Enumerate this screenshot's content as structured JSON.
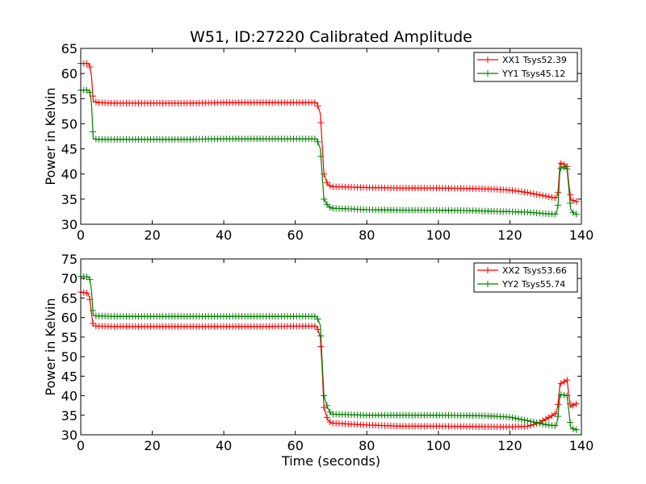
{
  "figure": {
    "title": "W51, ID:27220 Calibrated Amplitude"
  },
  "chart_data": [
    {
      "type": "line",
      "title": "W51, ID:27220 Calibrated Amplitude",
      "xlabel": "",
      "ylabel": "Power in Kelvin",
      "xlim": [
        0,
        140
      ],
      "ylim": [
        30,
        65
      ],
      "xticks": [
        0,
        20,
        40,
        60,
        80,
        100,
        120,
        140
      ],
      "yticks": [
        30,
        35,
        40,
        45,
        50,
        55,
        60,
        65
      ],
      "grid": false,
      "legend_position": "top-right",
      "marker": "+",
      "series": [
        {
          "name": "XX1 Tsys52.39",
          "color": "#ff0000",
          "x": [
            0,
            2,
            2.5,
            3,
            3.5,
            5,
            10,
            20,
            30,
            40,
            50,
            60,
            66,
            67,
            67.5,
            68,
            69,
            70,
            80,
            90,
            100,
            110,
            115,
            120,
            125,
            130,
            133,
            133.5,
            134,
            135,
            136,
            136.5,
            137,
            138,
            139
          ],
          "y": [
            62,
            62,
            61.5,
            59.5,
            54.5,
            54.2,
            54.1,
            54.1,
            54.1,
            54.2,
            54.2,
            54.2,
            54.2,
            52,
            46,
            40,
            38,
            37.5,
            37.3,
            37.2,
            37.2,
            37.1,
            37,
            36.8,
            36.3,
            35.6,
            35.2,
            36.5,
            42.2,
            42,
            41.5,
            38,
            35,
            34.6,
            34.5
          ]
        },
        {
          "name": "YY1 Tsys45.12",
          "color": "#008000",
          "x": [
            0,
            2,
            2.5,
            3,
            3.5,
            5,
            10,
            20,
            30,
            40,
            50,
            60,
            66,
            67,
            67.5,
            68,
            69,
            70,
            80,
            90,
            100,
            110,
            120,
            125,
            130,
            133,
            133.5,
            134,
            135,
            136,
            136.5,
            137,
            138,
            139
          ],
          "y": [
            56.7,
            56.7,
            56.5,
            54,
            47,
            46.9,
            46.9,
            46.9,
            46.9,
            47,
            47,
            47,
            47,
            45,
            40,
            35,
            33.8,
            33.2,
            32.9,
            32.8,
            32.8,
            32.7,
            32.5,
            32.4,
            32.1,
            32,
            34,
            41,
            41.5,
            41,
            37,
            33,
            32,
            32
          ]
        }
      ]
    },
    {
      "type": "line",
      "title": "",
      "xlabel": "Time (seconds)",
      "ylabel": "Power in Kelvin",
      "xlim": [
        0,
        140
      ],
      "ylim": [
        30,
        75
      ],
      "xticks": [
        0,
        20,
        40,
        60,
        80,
        100,
        120,
        140
      ],
      "yticks": [
        30,
        35,
        40,
        45,
        50,
        55,
        60,
        65,
        70,
        75
      ],
      "grid": false,
      "legend_position": "top-right",
      "marker": "+",
      "series": [
        {
          "name": "XX2 Tsys53.66",
          "color": "#ff0000",
          "x": [
            0,
            2,
            2.5,
            3,
            3.5,
            5,
            10,
            20,
            30,
            40,
            50,
            60,
            66,
            67,
            67.5,
            68,
            69,
            70,
            80,
            90,
            100,
            110,
            120,
            125,
            128,
            130,
            132,
            133,
            133.5,
            134,
            135,
            136,
            136.5,
            137,
            138,
            139
          ],
          "y": [
            66.5,
            66.2,
            65,
            61,
            57.9,
            57.8,
            57.7,
            57.7,
            57.7,
            57.7,
            57.7,
            57.8,
            57.8,
            55,
            47,
            37,
            34,
            33,
            32.5,
            32.2,
            32.2,
            32.1,
            32,
            32.2,
            33,
            34,
            35,
            35.6,
            38,
            43,
            43.5,
            44,
            40,
            37,
            37.8,
            38
          ]
        },
        {
          "name": "YY2 Tsys55.74",
          "color": "#008000",
          "x": [
            0,
            2,
            2.5,
            3,
            3.5,
            5,
            10,
            20,
            30,
            40,
            50,
            60,
            66,
            67,
            67.5,
            68,
            69,
            70,
            80,
            90,
            100,
            110,
            115,
            120,
            125,
            130,
            133,
            133.5,
            134,
            135,
            136,
            136.5,
            137,
            138,
            139
          ],
          "y": [
            70.5,
            70.4,
            70,
            67,
            60.5,
            60.4,
            60.3,
            60.3,
            60.3,
            60.3,
            60.3,
            60.3,
            60.3,
            58,
            49,
            40,
            37,
            35.3,
            35,
            35,
            35,
            34.9,
            34.8,
            34.5,
            33.6,
            32.6,
            32.3,
            35,
            40.3,
            40.2,
            40,
            36,
            32,
            31.3,
            31.3
          ]
        }
      ]
    }
  ]
}
